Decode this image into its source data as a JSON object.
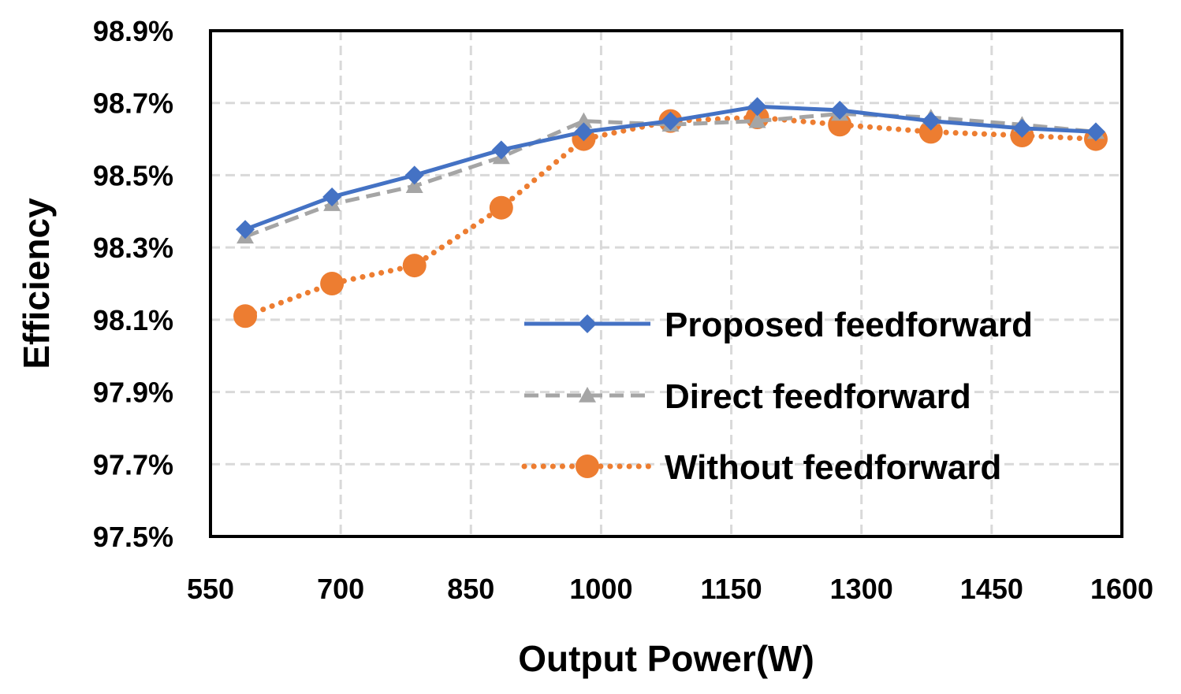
{
  "chart_data": {
    "type": "line",
    "title": "",
    "xlabel": "Output Power(W)",
    "ylabel": "Efficiency",
    "xlim": [
      550,
      1600
    ],
    "ylim": [
      97.5,
      98.9
    ],
    "x_ticks": [
      550,
      700,
      850,
      1000,
      1150,
      1300,
      1450,
      1600
    ],
    "x_tick_labels": [
      "550",
      "700",
      "850",
      "1000",
      "1150",
      "1300",
      "1450",
      "1600"
    ],
    "y_ticks": [
      97.5,
      97.7,
      97.9,
      98.1,
      98.3,
      98.5,
      98.7,
      98.9
    ],
    "y_tick_labels": [
      "97.5%",
      "97.7%",
      "97.9%",
      "98.1%",
      "98.3%",
      "98.5%",
      "98.7%",
      "98.9%"
    ],
    "grid": true,
    "legend_position": "right",
    "series": [
      {
        "name": "Proposed feedforward",
        "color": "#4472C4",
        "line_style": "solid",
        "marker": "diamond",
        "x": [
          590,
          690,
          785,
          885,
          980,
          1080,
          1180,
          1275,
          1380,
          1485,
          1570
        ],
        "y": [
          98.35,
          98.44,
          98.5,
          98.57,
          98.62,
          98.65,
          98.69,
          98.68,
          98.65,
          98.63,
          98.62
        ]
      },
      {
        "name": "Direct feedforward",
        "color": "#A5A5A5",
        "line_style": "dashed",
        "marker": "triangle",
        "x": [
          590,
          690,
          785,
          885,
          980,
          1080,
          1180,
          1275,
          1380,
          1485,
          1570
        ],
        "y": [
          98.33,
          98.42,
          98.47,
          98.55,
          98.65,
          98.64,
          98.65,
          98.67,
          98.66,
          98.64,
          98.62
        ]
      },
      {
        "name": "Without feedforward",
        "color": "#ED7D31",
        "line_style": "dotted",
        "marker": "circle",
        "x": [
          590,
          690,
          785,
          885,
          980,
          1080,
          1180,
          1275,
          1380,
          1485,
          1570
        ],
        "y": [
          98.11,
          98.2,
          98.25,
          98.41,
          98.6,
          98.65,
          98.66,
          98.64,
          98.62,
          98.61,
          98.6
        ]
      }
    ]
  }
}
